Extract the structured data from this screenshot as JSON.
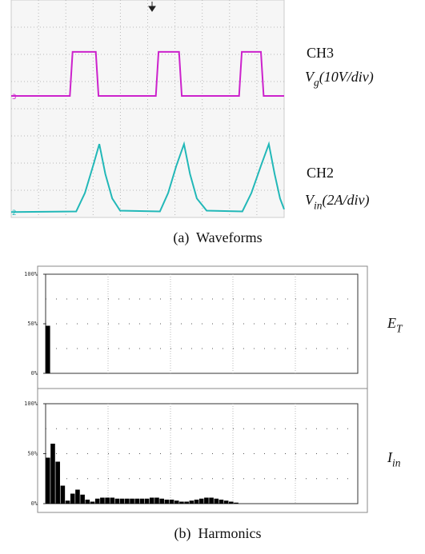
{
  "chart_data": [
    {
      "type": "line",
      "title": "(a)  Waveforms",
      "xlim": [
        0,
        10
      ],
      "ylim": [
        0,
        8
      ],
      "grid": true,
      "series": [
        {
          "name": "CH3",
          "label": {
            "symbol": "V",
            "subscript": "g",
            "unit": "(10V/div)"
          },
          "marker": "3",
          "color": "#cc22cc",
          "x": [
            0,
            2.15,
            2.25,
            3.1,
            3.2,
            5.3,
            5.4,
            6.15,
            6.25,
            8.35,
            8.45,
            9.15,
            9.25,
            10
          ],
          "values": [
            4.47,
            4.47,
            6.09,
            6.09,
            4.47,
            4.47,
            6.09,
            6.09,
            4.47,
            4.47,
            6.09,
            6.09,
            4.47,
            4.47
          ]
        },
        {
          "name": "CH2",
          "label": {
            "symbol": "V",
            "subscript": "in",
            "unit": "(2A/div)"
          },
          "marker": "2",
          "color": "#22b8b8",
          "x": [
            0,
            2.38,
            2.7,
            3.0,
            3.23,
            3.45,
            3.7,
            3.99,
            5.45,
            5.75,
            6.05,
            6.33,
            6.55,
            6.8,
            7.16,
            8.47,
            8.8,
            9.15,
            9.44,
            9.65,
            9.85,
            10
          ],
          "values": [
            0.2,
            0.22,
            0.9,
            1.9,
            2.7,
            1.6,
            0.7,
            0.25,
            0.22,
            0.9,
            1.9,
            2.7,
            1.6,
            0.7,
            0.25,
            0.22,
            0.9,
            1.9,
            2.7,
            1.6,
            0.7,
            0.3
          ]
        }
      ]
    },
    {
      "type": "bar",
      "label": {
        "symbol": "E",
        "subscript": "T"
      },
      "color": "#000000",
      "ylim": [
        0,
        100
      ],
      "yticks": [
        {
          "value": 0,
          "label": "0%"
        },
        {
          "value": 50,
          "label": "50%"
        },
        {
          "value": 100,
          "label": "100%"
        }
      ],
      "grid_yticks": [
        25,
        50,
        75
      ],
      "x_divisions": 5,
      "categories": [
        null,
        null,
        null,
        null,
        null,
        null,
        null,
        null,
        null,
        null,
        null,
        null,
        null,
        null,
        null,
        null,
        null,
        null,
        null,
        null,
        null,
        null,
        null,
        null,
        null,
        null,
        null,
        null,
        null,
        null,
        null,
        null,
        null,
        null,
        null,
        null,
        null,
        null,
        null,
        null,
        null,
        null,
        null,
        null,
        null,
        null,
        null,
        null,
        null,
        null,
        null,
        null,
        null,
        null,
        null,
        null,
        null,
        null,
        null,
        null,
        null,
        null,
        null
      ],
      "values": [
        48,
        0,
        0,
        0,
        0,
        0,
        0,
        0,
        0,
        0,
        0,
        0,
        0,
        0,
        0,
        0,
        0,
        0,
        0,
        0,
        0,
        0,
        0,
        0,
        0,
        0,
        0,
        0,
        0,
        0,
        0,
        0,
        0,
        0,
        0,
        0,
        0,
        0,
        0,
        0,
        0,
        0,
        0,
        0,
        0,
        0,
        0,
        0,
        0,
        0,
        0,
        0,
        0,
        0,
        0,
        0,
        0,
        0,
        0,
        0,
        0,
        0,
        0
      ]
    },
    {
      "type": "bar",
      "title": "(b)  Harmonics",
      "label": {
        "symbol": "I",
        "subscript": "in"
      },
      "color": "#000000",
      "ylim": [
        0,
        100
      ],
      "yticks": [
        {
          "value": 0,
          "label": "0%"
        },
        {
          "value": 50,
          "label": "50%"
        },
        {
          "value": 100,
          "label": "100%"
        }
      ],
      "grid_yticks": [
        25,
        50,
        75
      ],
      "x_divisions": 5,
      "categories": [
        null,
        null,
        null,
        null,
        null,
        null,
        null,
        null,
        null,
        null,
        null,
        null,
        null,
        null,
        null,
        null,
        null,
        null,
        null,
        null,
        null,
        null,
        null,
        null,
        null,
        null,
        null,
        null,
        null,
        null,
        null,
        null,
        null,
        null,
        null,
        null,
        null,
        null,
        null,
        null,
        null,
        null,
        null,
        null,
        null,
        null,
        null,
        null,
        null,
        null,
        null,
        null,
        null,
        null,
        null,
        null,
        null,
        null,
        null,
        null,
        null,
        null,
        null
      ],
      "values": [
        46,
        60,
        42,
        18,
        3,
        10,
        14,
        9,
        4,
        2,
        5,
        6,
        6,
        6,
        5,
        5,
        5,
        5,
        5,
        5,
        5,
        6,
        6,
        5,
        4,
        4,
        3,
        2,
        2,
        3,
        4,
        5,
        6,
        6,
        5,
        4,
        3,
        2,
        1,
        0,
        0,
        0,
        0,
        0,
        0,
        0,
        0,
        0,
        0,
        0,
        0,
        0,
        0,
        0,
        0,
        0,
        0,
        0,
        0,
        0,
        0,
        0,
        0
      ]
    }
  ]
}
